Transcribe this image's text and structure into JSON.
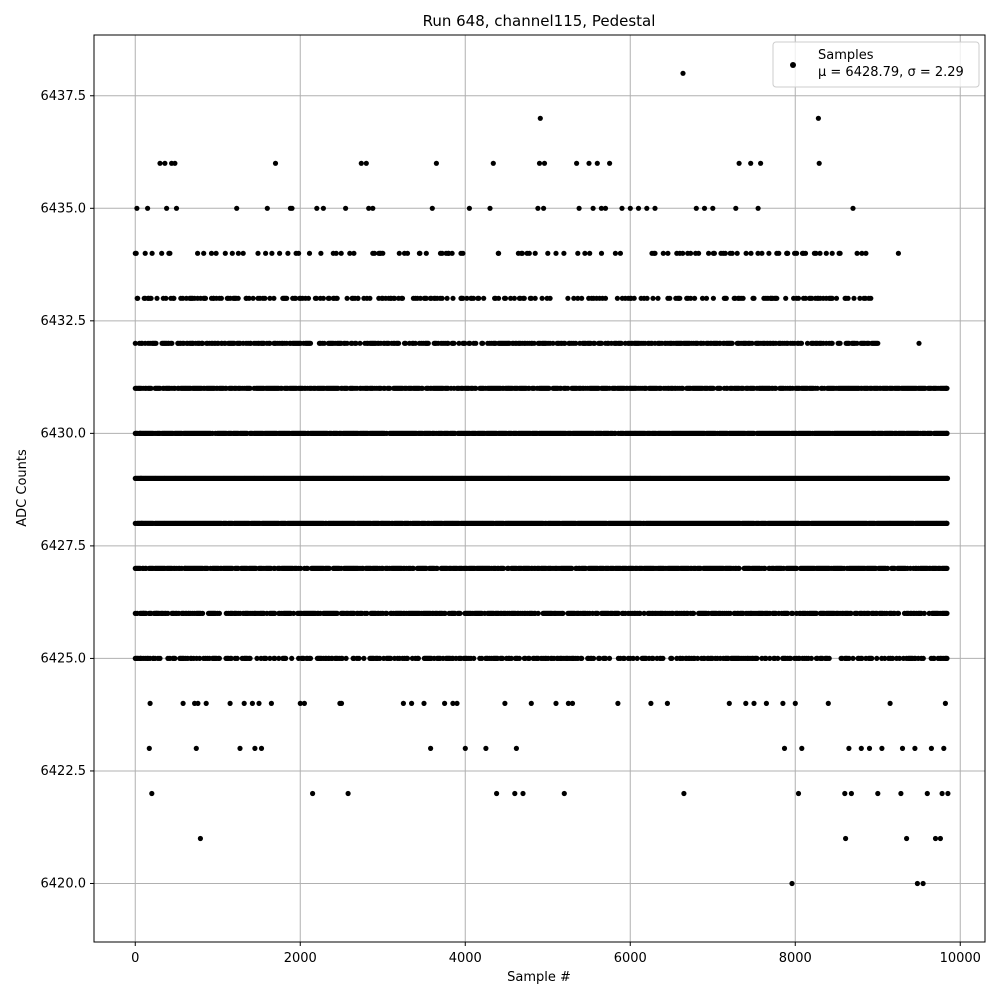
{
  "chart_data": {
    "type": "scatter",
    "title": "Run 648, channel115, Pedestal",
    "xlabel": "Sample #",
    "ylabel": "ADC Counts",
    "xlim": [
      -500,
      10300
    ],
    "ylim": [
      6418.7,
      6438.85
    ],
    "x_ticks": [
      0,
      2000,
      4000,
      6000,
      8000,
      10000
    ],
    "y_ticks": [
      6420.0,
      6422.5,
      6425.0,
      6427.5,
      6430.0,
      6432.5,
      6435.0,
      6437.5
    ],
    "x_tick_labels": [
      "0",
      "2000",
      "4000",
      "6000",
      "8000",
      "10000"
    ],
    "y_tick_labels": [
      "6420.0",
      "6422.5",
      "6425.0",
      "6427.5",
      "6430.0",
      "6432.5",
      "6435.0",
      "6437.5"
    ],
    "grid": true,
    "legend_position": "top-right",
    "marker_color": "#000000",
    "series": [
      {
        "name": "Samples",
        "stat_line": "μ = 6428.79, σ = 2.29",
        "points": [
          [
            0,
            6434
          ],
          [
            20,
            6435
          ],
          [
            30,
            6433
          ],
          [
            40,
            6431
          ],
          [
            50,
            6432
          ],
          [
            60,
            6430
          ],
          [
            70,
            6429
          ],
          [
            80,
            6428
          ],
          [
            90,
            6427
          ],
          [
            100,
            6426
          ],
          [
            60,
            6425
          ],
          [
            120,
            6434
          ],
          [
            150,
            6435
          ],
          [
            160,
            6433
          ],
          [
            180,
            6424
          ],
          [
            200,
            6422
          ],
          [
            170,
            6423
          ],
          [
            220,
            6425
          ],
          [
            260,
            6426
          ],
          [
            300,
            6436
          ],
          [
            320,
            6434
          ],
          [
            340,
            6433
          ],
          [
            360,
            6436
          ],
          [
            380,
            6435
          ],
          [
            400,
            6432
          ],
          [
            420,
            6434
          ],
          [
            440,
            6436
          ],
          [
            460,
            6433
          ],
          [
            480,
            6436
          ],
          [
            500,
            6435
          ],
          [
            520,
            6432
          ],
          [
            550,
            6425
          ],
          [
            580,
            6424
          ],
          [
            600,
            6427
          ],
          [
            620,
            6433
          ],
          [
            650,
            6426
          ],
          [
            680,
            6425
          ],
          [
            700,
            6432
          ],
          [
            720,
            6424
          ],
          [
            740,
            6423
          ],
          [
            760,
            6424
          ],
          [
            790,
            6421
          ],
          [
            810,
            6432
          ],
          [
            830,
            6434
          ],
          [
            860,
            6424
          ],
          [
            900,
            6425
          ],
          [
            950,
            6433
          ],
          [
            980,
            6434
          ],
          [
            1050,
            6432
          ],
          [
            1100,
            6425
          ],
          [
            1150,
            6424
          ],
          [
            1200,
            6433
          ],
          [
            1230,
            6435
          ],
          [
            1250,
            6434
          ],
          [
            1270,
            6423
          ],
          [
            1320,
            6424
          ],
          [
            1350,
            6433
          ],
          [
            1400,
            6432
          ],
          [
            1420,
            6424
          ],
          [
            1450,
            6423
          ],
          [
            1500,
            6424
          ],
          [
            1530,
            6423
          ],
          [
            1580,
            6434
          ],
          [
            1600,
            6435
          ],
          [
            1650,
            6424
          ],
          [
            1700,
            6436
          ],
          [
            1750,
            6434
          ],
          [
            1800,
            6433
          ],
          [
            1850,
            6434
          ],
          [
            1880,
            6435
          ],
          [
            1900,
            6435
          ],
          [
            1950,
            6434
          ],
          [
            2000,
            6424
          ],
          [
            2050,
            6424
          ],
          [
            2100,
            6433
          ],
          [
            2150,
            6422
          ],
          [
            2200,
            6435
          ],
          [
            2250,
            6434
          ],
          [
            2280,
            6435
          ],
          [
            2350,
            6425
          ],
          [
            2400,
            6433
          ],
          [
            2480,
            6424
          ],
          [
            2500,
            6424
          ],
          [
            2550,
            6435
          ],
          [
            2580,
            6422
          ],
          [
            2600,
            6434
          ],
          [
            2650,
            6434
          ],
          [
            2700,
            6433
          ],
          [
            2740,
            6436
          ],
          [
            2800,
            6436
          ],
          [
            2830,
            6435
          ],
          [
            2880,
            6435
          ],
          [
            2900,
            6434
          ],
          [
            3000,
            6434
          ],
          [
            3100,
            6433
          ],
          [
            3200,
            6434
          ],
          [
            3250,
            6424
          ],
          [
            3300,
            6434
          ],
          [
            3350,
            6424
          ],
          [
            3450,
            6434
          ],
          [
            3500,
            6424
          ],
          [
            3580,
            6423
          ],
          [
            3600,
            6435
          ],
          [
            3650,
            6436
          ],
          [
            3700,
            6434
          ],
          [
            3750,
            6424
          ],
          [
            3800,
            6434
          ],
          [
            3850,
            6424
          ],
          [
            3900,
            6424
          ],
          [
            3950,
            6433
          ],
          [
            4000,
            6423
          ],
          [
            4050,
            6435
          ],
          [
            4100,
            6433
          ],
          [
            4250,
            6423
          ],
          [
            4300,
            6435
          ],
          [
            4340,
            6436
          ],
          [
            4380,
            6422
          ],
          [
            4400,
            6434
          ],
          [
            4480,
            6424
          ],
          [
            4550,
            6433
          ],
          [
            4600,
            6422
          ],
          [
            4620,
            6423
          ],
          [
            4700,
            6422
          ],
          [
            4750,
            6434
          ],
          [
            4800,
            6424
          ],
          [
            4880,
            6435
          ],
          [
            4900,
            6436
          ],
          [
            4910,
            6437
          ],
          [
            4950,
            6435
          ],
          [
            4960,
            6436
          ],
          [
            5000,
            6434
          ],
          [
            5100,
            6424
          ],
          [
            5200,
            6422
          ],
          [
            5250,
            6424
          ],
          [
            5300,
            6424
          ],
          [
            5350,
            6436
          ],
          [
            5380,
            6435
          ],
          [
            5450,
            6434
          ],
          [
            5500,
            6436
          ],
          [
            5550,
            6435
          ],
          [
            5600,
            6436
          ],
          [
            5650,
            6435
          ],
          [
            5700,
            6435
          ],
          [
            5750,
            6436
          ],
          [
            5850,
            6424
          ],
          [
            5900,
            6435
          ],
          [
            6000,
            6435
          ],
          [
            6100,
            6435
          ],
          [
            6200,
            6435
          ],
          [
            6250,
            6424
          ],
          [
            6300,
            6435
          ],
          [
            6400,
            6434
          ],
          [
            6450,
            6424
          ],
          [
            6600,
            6434
          ],
          [
            6640,
            6438
          ],
          [
            6650,
            6422
          ],
          [
            6700,
            6433
          ],
          [
            6800,
            6435
          ],
          [
            6900,
            6435
          ],
          [
            6950,
            6434
          ],
          [
            7000,
            6435
          ],
          [
            7100,
            6434
          ],
          [
            7200,
            6424
          ],
          [
            7280,
            6435
          ],
          [
            7320,
            6436
          ],
          [
            7400,
            6424
          ],
          [
            7460,
            6436
          ],
          [
            7500,
            6424
          ],
          [
            7550,
            6435
          ],
          [
            7580,
            6436
          ],
          [
            7650,
            6424
          ],
          [
            7700,
            6433
          ],
          [
            7800,
            6434
          ],
          [
            7850,
            6424
          ],
          [
            7870,
            6423
          ],
          [
            7900,
            6434
          ],
          [
            7960,
            6420
          ],
          [
            8000,
            6424
          ],
          [
            8040,
            6422
          ],
          [
            8080,
            6423
          ],
          [
            8100,
            6434
          ],
          [
            8200,
            6433
          ],
          [
            8250,
            6434
          ],
          [
            8280,
            6437
          ],
          [
            8290,
            6436
          ],
          [
            8300,
            6434
          ],
          [
            8400,
            6424
          ],
          [
            8500,
            6433
          ],
          [
            8600,
            6422
          ],
          [
            8610,
            6421
          ],
          [
            8650,
            6423
          ],
          [
            8680,
            6422
          ],
          [
            8700,
            6435
          ],
          [
            8750,
            6434
          ],
          [
            8800,
            6423
          ],
          [
            8850,
            6433
          ],
          [
            8900,
            6423
          ],
          [
            9000,
            6422
          ],
          [
            9050,
            6423
          ],
          [
            9150,
            6424
          ],
          [
            9250,
            6434
          ],
          [
            9280,
            6422
          ],
          [
            9300,
            6423
          ],
          [
            9350,
            6421
          ],
          [
            9450,
            6423
          ],
          [
            9480,
            6420
          ],
          [
            9500,
            6432
          ],
          [
            9550,
            6420
          ],
          [
            9600,
            6422
          ],
          [
            9650,
            6423
          ],
          [
            9700,
            6421
          ],
          [
            9760,
            6421
          ],
          [
            9780,
            6422
          ],
          [
            9800,
            6423
          ],
          [
            9820,
            6424
          ],
          [
            9850,
            6422
          ],
          [
            9830,
            6431
          ],
          [
            9840,
            6430
          ],
          [
            9845,
            6429
          ],
          [
            9835,
            6428
          ]
        ],
        "bands": [
          {
            "y": 6431,
            "x_from": 0,
            "x_to": 9840,
            "density": 0.75
          },
          {
            "y": 6430,
            "x_from": 0,
            "x_to": 9840,
            "density": 0.9
          },
          {
            "y": 6429,
            "x_from": 0,
            "x_to": 9850,
            "density": 1.0
          },
          {
            "y": 6428,
            "x_from": 0,
            "x_to": 9840,
            "density": 0.95
          },
          {
            "y": 6427,
            "x_from": 0,
            "x_to": 9840,
            "density": 0.8
          },
          {
            "y": 6426,
            "x_from": 0,
            "x_to": 9850,
            "density": 0.65
          },
          {
            "y": 6432,
            "x_from": 0,
            "x_to": 9000,
            "density": 0.55
          },
          {
            "y": 6425,
            "x_from": 0,
            "x_to": 9840,
            "density": 0.45
          },
          {
            "y": 6433,
            "x_from": 0,
            "x_to": 8950,
            "density": 0.25
          },
          {
            "y": 6434,
            "x_from": 0,
            "x_to": 8900,
            "density": 0.12
          }
        ]
      }
    ]
  }
}
